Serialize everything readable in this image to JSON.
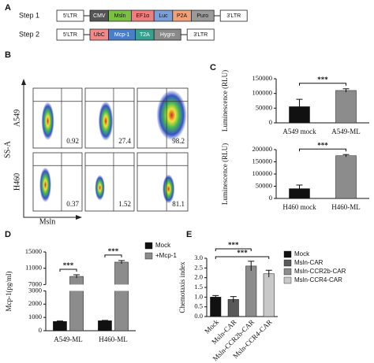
{
  "construct": {
    "panel": "A",
    "steps": [
      {
        "label": "Step 1",
        "elements": [
          {
            "text": "5'LTR",
            "color": "#ffffff"
          },
          {
            "text": "CMV",
            "color": "#555555"
          },
          {
            "text": "Msln",
            "color": "#7ac143"
          },
          {
            "text": "EF1α",
            "color": "#ef7f7f"
          },
          {
            "text": "Luc",
            "color": "#7b9fd9"
          },
          {
            "text": "P2A",
            "color": "#f2a07a"
          },
          {
            "text": "Puro",
            "color": "#9a9a9a"
          },
          {
            "text": "3'LTR",
            "color": "#ffffff"
          }
        ]
      },
      {
        "label": "Step 2",
        "elements": [
          {
            "text": "5'LTR",
            "color": "#ffffff"
          },
          {
            "text": "UbC",
            "color": "#f08a8a"
          },
          {
            "text": "Mcp-1",
            "color": "#4a7fc8"
          },
          {
            "text": "T2A",
            "color": "#36a18e"
          },
          {
            "text": "Hygro",
            "color": "#8a8a8a"
          },
          {
            "text": "3'LTR",
            "color": "#ffffff"
          }
        ]
      }
    ]
  },
  "flow": {
    "panel": "B",
    "rows": [
      "A549",
      "H460"
    ],
    "ylabel": "SS-A",
    "xlabel": "Msln",
    "percentages": [
      [
        "0.92",
        "27.4",
        "98.2"
      ],
      [
        "0.37",
        "1.52",
        "81.1"
      ]
    ]
  },
  "chart_data": [
    {
      "type": "bar",
      "panel": "C",
      "ylabel": "Luminescence (RLU)",
      "categories": [
        "A549 mock",
        "A549-ML"
      ],
      "values": [
        55000,
        110000
      ],
      "errors": [
        25000,
        6000
      ],
      "colors": [
        "#111111",
        "#8c8c8c"
      ],
      "ylim": [
        0,
        150000
      ],
      "yticks": [
        0,
        50000,
        100000,
        150000
      ],
      "annotations": [
        "***"
      ]
    },
    {
      "type": "bar",
      "ylabel": "Luminescence (RLU)",
      "categories": [
        "H460 mock",
        "H460-ML"
      ],
      "values": [
        40000,
        175000
      ],
      "errors": [
        15000,
        5000
      ],
      "colors": [
        "#111111",
        "#8c8c8c"
      ],
      "ylim": [
        0,
        200000
      ],
      "yticks": [
        0,
        50000,
        100000,
        150000,
        200000
      ],
      "annotations": [
        "***"
      ]
    },
    {
      "type": "grouped-bar",
      "panel": "D",
      "ylabel": "Mcp-1(pg/ml)",
      "categories": [
        "A549-ML",
        "H460-ML"
      ],
      "series": [
        {
          "name": "Mock",
          "color": "#111111",
          "values": [
            700,
            750
          ],
          "errors": [
            30,
            30
          ]
        },
        {
          "name": "+Mcp-1",
          "color": "#8c8c8c",
          "values": [
            9000,
            12500
          ],
          "errors": [
            400,
            400
          ]
        }
      ],
      "ylim": [
        0,
        15000
      ],
      "ybreak": [
        3000,
        7000
      ],
      "yticks": [
        0,
        1000,
        2000,
        3000,
        7000,
        11000,
        15000
      ],
      "annotations": [
        "***",
        "***"
      ],
      "legend": "right"
    },
    {
      "type": "bar",
      "panel": "E",
      "ylabel": "Chemotaxis index",
      "categories": [
        "Mock",
        "Msln-CAR",
        "Msln-CCR2b-CAR",
        "Msln-CCR4-CAR"
      ],
      "values": [
        1.0,
        0.88,
        2.6,
        2.2
      ],
      "errors": [
        0.08,
        0.15,
        0.25,
        0.18
      ],
      "colors": [
        "#111111",
        "#595959",
        "#8c8c8c",
        "#c8c8c8"
      ],
      "ylim": [
        0,
        3
      ],
      "yticks": [
        {
          "value": 0,
          "label": "0.0"
        },
        {
          "value": 0.5,
          "label": "0.5"
        },
        {
          "value": 1,
          "label": "1.0"
        },
        {
          "value": 1.5,
          "label": "1.5"
        },
        {
          "value": 2,
          "label": "2.0"
        },
        {
          "value": 2.5,
          "label": "2.5"
        },
        {
          "value": 3,
          "label": "3.0"
        }
      ],
      "annotations": [
        "***",
        "***"
      ],
      "legend": "right",
      "rotate_labels": true
    }
  ]
}
